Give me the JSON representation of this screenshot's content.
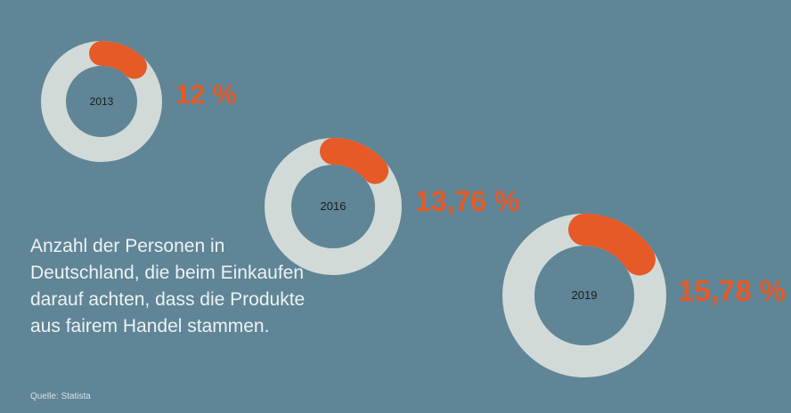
{
  "chart_data": {
    "type": "pie",
    "title": "",
    "description": "Anzahl der Personen in Deutschland, die beim Einkaufen darauf achten, dass die Produkte aus fairem Handel stammen.",
    "source": "Quelle: Statista",
    "series": [
      {
        "year": "2013",
        "value": 12,
        "label": "12 %"
      },
      {
        "year": "2016",
        "value": 13.76,
        "label": "13,76 %"
      },
      {
        "year": "2019",
        "value": 15.78,
        "label": "15,78 %"
      }
    ]
  },
  "colors": {
    "background": "#5f8597",
    "ring": "#d2dad8",
    "highlight": "#e55a27"
  }
}
